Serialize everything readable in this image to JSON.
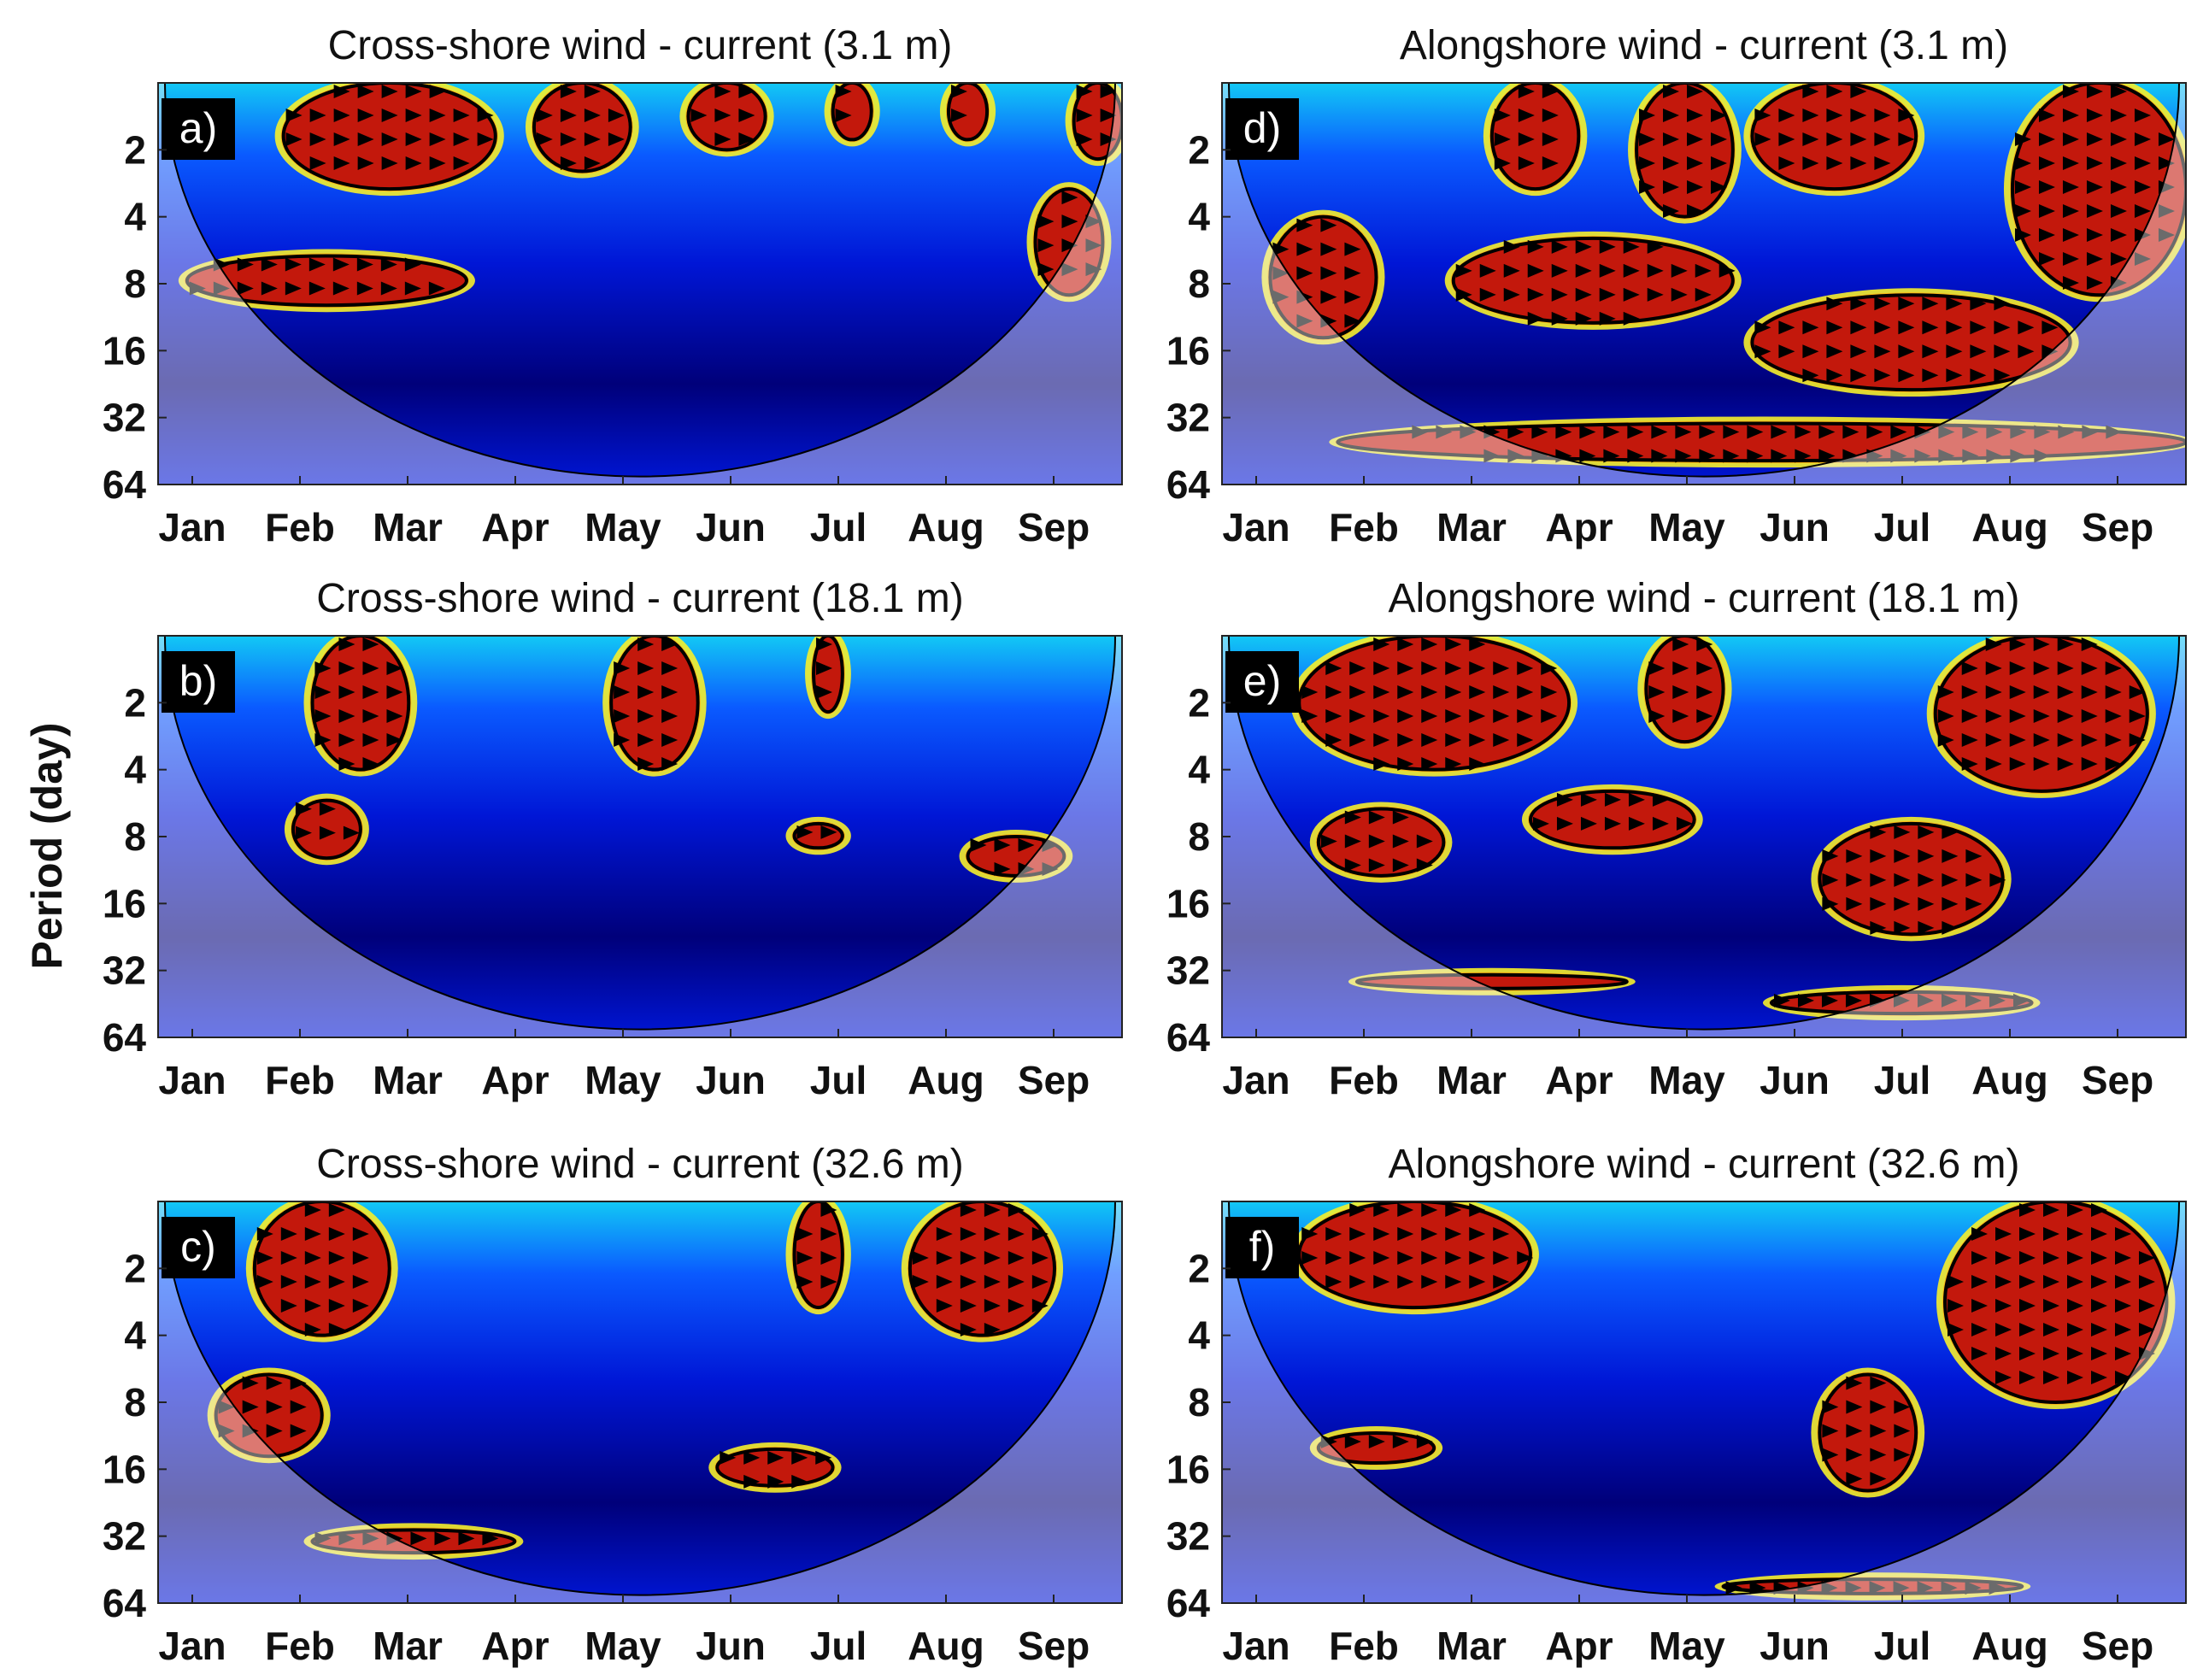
{
  "figure": {
    "ylabel": "Period (day)",
    "colors": {
      "cmap": [
        "#00007a",
        "#0016d6",
        "#0a5aff",
        "#12c8f5",
        "#7df0c0",
        "#f6f02a",
        "#fbb413",
        "#f45a14",
        "#c3180c"
      ],
      "coi_shade": "#ffffff",
      "label_box": "#000000",
      "arrow": "#000000",
      "contour": "#000000"
    }
  },
  "chart_data": [
    {
      "type": "heatmap",
      "panel_label": "a)",
      "title": "Cross-shore wind - current (3.1 m)",
      "x_ticks": [
        "Jan",
        "Feb",
        "Mar",
        "Apr",
        "May",
        "Jun",
        "Jul",
        "Aug",
        "Sep"
      ],
      "y_ticks": [
        "2",
        "4",
        "8",
        "16",
        "32",
        "64"
      ],
      "y_scale": "log2",
      "ylim": [
        1,
        64
      ],
      "significant_regions": [
        {
          "t": [
            0.13,
            0.35
          ],
          "p": [
            1,
            3
          ]
        },
        {
          "t": [
            0.39,
            0.49
          ],
          "p": [
            1,
            2.5
          ]
        },
        {
          "t": [
            0.55,
            0.63
          ],
          "p": [
            1,
            2
          ]
        },
        {
          "t": [
            0.7,
            0.74
          ],
          "p": [
            1,
            1.8
          ]
        },
        {
          "t": [
            0.82,
            0.86
          ],
          "p": [
            1,
            1.8
          ]
        },
        {
          "t": [
            0.95,
            1.0
          ],
          "p": [
            1,
            2.2
          ]
        },
        {
          "t": [
            0.91,
            0.98
          ],
          "p": [
            3,
            9
          ]
        },
        {
          "t": [
            0.03,
            0.32
          ],
          "p": [
            6,
            10
          ]
        }
      ]
    },
    {
      "type": "heatmap",
      "panel_label": "b)",
      "title": "Cross-shore wind - current (18.1 m)",
      "x_ticks": [
        "Jan",
        "Feb",
        "Mar",
        "Apr",
        "May",
        "Jun",
        "Jul",
        "Aug",
        "Sep"
      ],
      "y_ticks": [
        "2",
        "4",
        "8",
        "16",
        "32",
        "64"
      ],
      "y_scale": "log2",
      "ylim": [
        1,
        64
      ],
      "significant_regions": [
        {
          "t": [
            0.16,
            0.26
          ],
          "p": [
            1,
            4
          ]
        },
        {
          "t": [
            0.47,
            0.56
          ],
          "p": [
            1,
            4
          ]
        },
        {
          "t": [
            0.68,
            0.71
          ],
          "p": [
            1,
            2.2
          ]
        },
        {
          "t": [
            0.14,
            0.21
          ],
          "p": [
            5.5,
            10
          ]
        },
        {
          "t": [
            0.84,
            0.94
          ],
          "p": [
            8,
            12
          ]
        },
        {
          "t": [
            0.66,
            0.71
          ],
          "p": [
            7,
            9
          ]
        }
      ]
    },
    {
      "type": "heatmap",
      "panel_label": "c)",
      "title": "Cross-shore wind - current (32.6 m)",
      "x_ticks": [
        "Jan",
        "Feb",
        "Mar",
        "Apr",
        "May",
        "Jun",
        "Jul",
        "Aug",
        "Sep"
      ],
      "y_ticks": [
        "2",
        "4",
        "8",
        "16",
        "32",
        "64"
      ],
      "y_scale": "log2",
      "ylim": [
        1,
        64
      ],
      "significant_regions": [
        {
          "t": [
            0.1,
            0.24
          ],
          "p": [
            1,
            4
          ]
        },
        {
          "t": [
            0.66,
            0.71
          ],
          "p": [
            1,
            3
          ]
        },
        {
          "t": [
            0.78,
            0.93
          ],
          "p": [
            1,
            4
          ]
        },
        {
          "t": [
            0.06,
            0.17
          ],
          "p": [
            6,
            14
          ]
        },
        {
          "t": [
            0.58,
            0.7
          ],
          "p": [
            13,
            19
          ]
        },
        {
          "t": [
            0.16,
            0.37
          ],
          "p": [
            30,
            38
          ]
        }
      ]
    },
    {
      "type": "heatmap",
      "panel_label": "d)",
      "title": "Alongshore wind - current (3.1 m)",
      "x_ticks": [
        "Jan",
        "Feb",
        "Mar",
        "Apr",
        "May",
        "Jun",
        "Jul",
        "Aug",
        "Sep"
      ],
      "y_ticks": [
        "2",
        "4",
        "8",
        "16",
        "32",
        "64"
      ],
      "y_scale": "log2",
      "ylim": [
        1,
        64
      ],
      "significant_regions": [
        {
          "t": [
            0.05,
            0.16
          ],
          "p": [
            4,
            14
          ]
        },
        {
          "t": [
            0.24,
            0.53
          ],
          "p": [
            5,
            12
          ]
        },
        {
          "t": [
            0.28,
            0.37
          ],
          "p": [
            1,
            3
          ]
        },
        {
          "t": [
            0.43,
            0.53
          ],
          "p": [
            1,
            4
          ]
        },
        {
          "t": [
            0.55,
            0.72
          ],
          "p": [
            1,
            3
          ]
        },
        {
          "t": [
            0.55,
            0.88
          ],
          "p": [
            9,
            24
          ]
        },
        {
          "t": [
            0.82,
            1.0
          ],
          "p": [
            1,
            9
          ]
        },
        {
          "t": [
            0.12,
            1.0
          ],
          "p": [
            34,
            50
          ]
        }
      ]
    },
    {
      "type": "heatmap",
      "panel_label": "e)",
      "title": "Alongshore wind - current (18.1 m)",
      "x_ticks": [
        "Jan",
        "Feb",
        "Mar",
        "Apr",
        "May",
        "Jun",
        "Jul",
        "Aug",
        "Sep"
      ],
      "y_ticks": [
        "2",
        "4",
        "8",
        "16",
        "32",
        "64"
      ],
      "y_scale": "log2",
      "ylim": [
        1,
        64
      ],
      "significant_regions": [
        {
          "t": [
            0.08,
            0.36
          ],
          "p": [
            1,
            4
          ]
        },
        {
          "t": [
            0.44,
            0.52
          ],
          "p": [
            1,
            3
          ]
        },
        {
          "t": [
            0.74,
            0.96
          ],
          "p": [
            1,
            5
          ]
        },
        {
          "t": [
            0.1,
            0.23
          ],
          "p": [
            6,
            12
          ]
        },
        {
          "t": [
            0.32,
            0.49
          ],
          "p": [
            5,
            9
          ]
        },
        {
          "t": [
            0.62,
            0.81
          ],
          "p": [
            7,
            22
          ]
        },
        {
          "t": [
            0.57,
            0.84
          ],
          "p": [
            40,
            50
          ]
        },
        {
          "t": [
            0.14,
            0.42
          ],
          "p": [
            34,
            38
          ]
        }
      ]
    },
    {
      "type": "heatmap",
      "panel_label": "f)",
      "title": "Alongshore wind - current (32.6 m)",
      "x_ticks": [
        "Jan",
        "Feb",
        "Mar",
        "Apr",
        "May",
        "Jun",
        "Jul",
        "Aug",
        "Sep"
      ],
      "y_ticks": [
        "2",
        "4",
        "8",
        "16",
        "32",
        "64"
      ],
      "y_scale": "log2",
      "ylim": [
        1,
        64
      ],
      "significant_regions": [
        {
          "t": [
            0.08,
            0.32
          ],
          "p": [
            1,
            3
          ]
        },
        {
          "t": [
            0.75,
            0.98
          ],
          "p": [
            1,
            8
          ]
        },
        {
          "t": [
            0.62,
            0.72
          ],
          "p": [
            6,
            20
          ]
        },
        {
          "t": [
            0.1,
            0.22
          ],
          "p": [
            11,
            15
          ]
        },
        {
          "t": [
            0.52,
            0.83
          ],
          "p": [
            50,
            58
          ]
        }
      ]
    }
  ]
}
